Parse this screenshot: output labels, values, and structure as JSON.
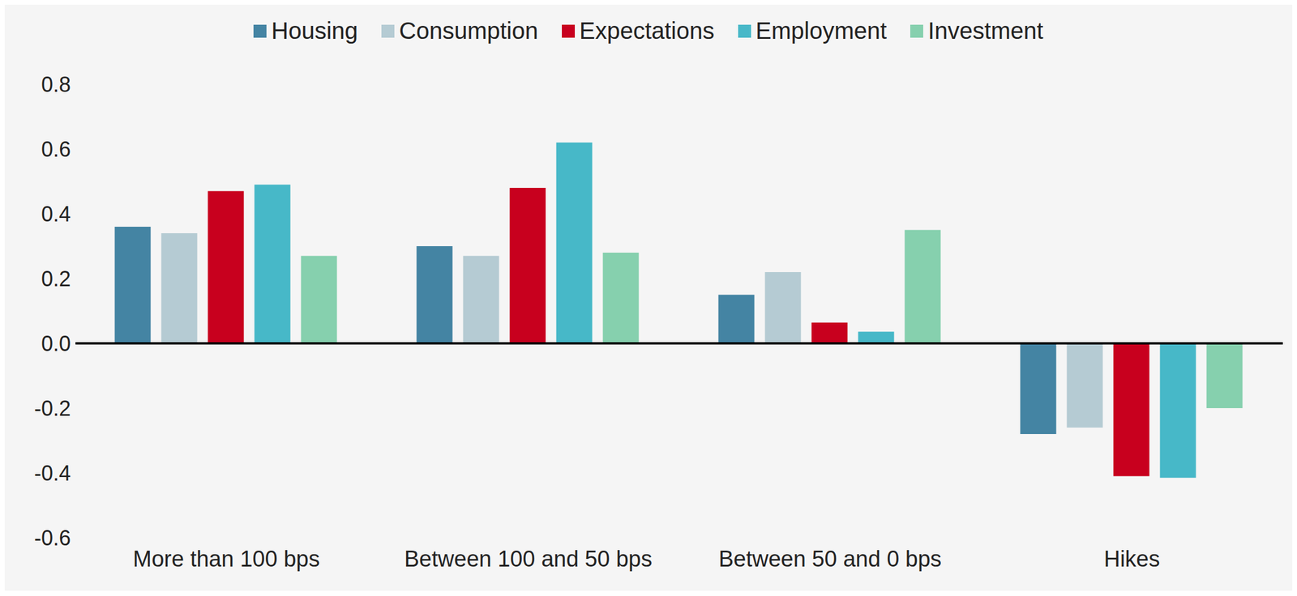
{
  "chart_data": {
    "type": "bar",
    "categories": [
      "More than 100 bps",
      "Between 100 and 50 bps",
      "Between 50 and 0 bps",
      "Hikes"
    ],
    "series": [
      {
        "name": "Housing",
        "color": "#4484a3",
        "values": [
          0.36,
          0.3,
          0.15,
          -0.28
        ]
      },
      {
        "name": "Consumption",
        "color": "#b5cbd3",
        "values": [
          0.34,
          0.27,
          0.22,
          -0.26
        ]
      },
      {
        "name": "Expectations",
        "color": "#c8001e",
        "values": [
          0.47,
          0.48,
          0.064,
          -0.41
        ]
      },
      {
        "name": "Employment",
        "color": "#47b8c8",
        "values": [
          0.49,
          0.62,
          0.036,
          -0.415
        ]
      },
      {
        "name": "Investment",
        "color": "#86d0ae",
        "values": [
          0.27,
          0.28,
          0.35,
          -0.2
        ]
      }
    ],
    "ylim": [
      -0.6,
      0.8
    ],
    "yticks": [
      -0.6,
      -0.4,
      -0.2,
      {
        "value": 0,
        "label": "0.0"
      },
      0.2,
      0.4,
      0.6,
      0.8
    ],
    "grid": false,
    "legend": "top"
  }
}
